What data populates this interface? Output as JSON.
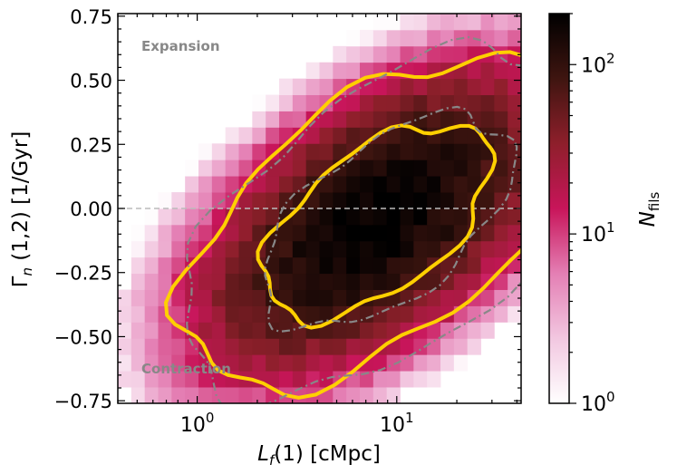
{
  "chart_data": {
    "type": "heatmap",
    "title": "",
    "xlabel": "L_f(1)  [cMpc]",
    "ylabel": "Γ_n (1,2)  [1/Gyr]",
    "xscale": "log",
    "xlim": [
      0.4,
      42
    ],
    "ylim": [
      -0.76,
      0.76
    ],
    "x_ticks": [
      {
        "value": 1,
        "base": "10",
        "exp": "0"
      },
      {
        "value": 10,
        "base": "10",
        "exp": "1"
      }
    ],
    "y_ticks": [
      {
        "value": 0.75,
        "label": "0.75"
      },
      {
        "value": 0.5,
        "label": "0.50"
      },
      {
        "value": 0.25,
        "label": "0.25"
      },
      {
        "value": 0.0,
        "label": "0.00"
      },
      {
        "value": -0.25,
        "label": "−0.25"
      },
      {
        "value": -0.5,
        "label": "−0.50"
      },
      {
        "value": -0.75,
        "label": "−0.75"
      }
    ],
    "reference_line": {
      "y": 0.0,
      "style": "dashed",
      "color": "#bbbbbb"
    },
    "annotations": [
      {
        "text": "Expansion",
        "x": 0.55,
        "y": 0.63,
        "color": "#888888"
      },
      {
        "text": "Contraction",
        "x": 0.55,
        "y": -0.63,
        "color": "#888888"
      }
    ],
    "colorbar": {
      "label_main": "N",
      "label_sub": "fils",
      "scale": "log",
      "range": [
        1,
        200
      ],
      "ticks": [
        {
          "value": 1,
          "base": "10",
          "exp": "0"
        },
        {
          "value": 10,
          "base": "10",
          "exp": "1"
        },
        {
          "value": 100,
          "base": "10",
          "exp": "2"
        }
      ],
      "colors": [
        "#ffffff",
        "#f2c7e0",
        "#e47fb4",
        "#c8155a",
        "#8e1f2b",
        "#3f1510",
        "#000000"
      ]
    },
    "density_model": {
      "peak": 200,
      "center_log10x": 0.9,
      "center_y": -0.05,
      "sigma_log10x": 0.42,
      "sigma_y": 0.28,
      "correlation": 0.55,
      "bins_x": 30,
      "bins_y": 24
    },
    "series": [
      {
        "name": "gold contour outer",
        "color": "#ffd000",
        "style": "solid",
        "level": 0.07
      },
      {
        "name": "gold contour inner",
        "color": "#ffd000",
        "style": "solid",
        "level": 0.4
      },
      {
        "name": "grey contour outer",
        "color": "#888888",
        "style": "dashdot",
        "level": 0.05,
        "shift_log10x": 0.05
      },
      {
        "name": "grey contour inner",
        "color": "#888888",
        "style": "dashdot",
        "level": 0.33,
        "shift_log10x": 0.05
      }
    ]
  }
}
